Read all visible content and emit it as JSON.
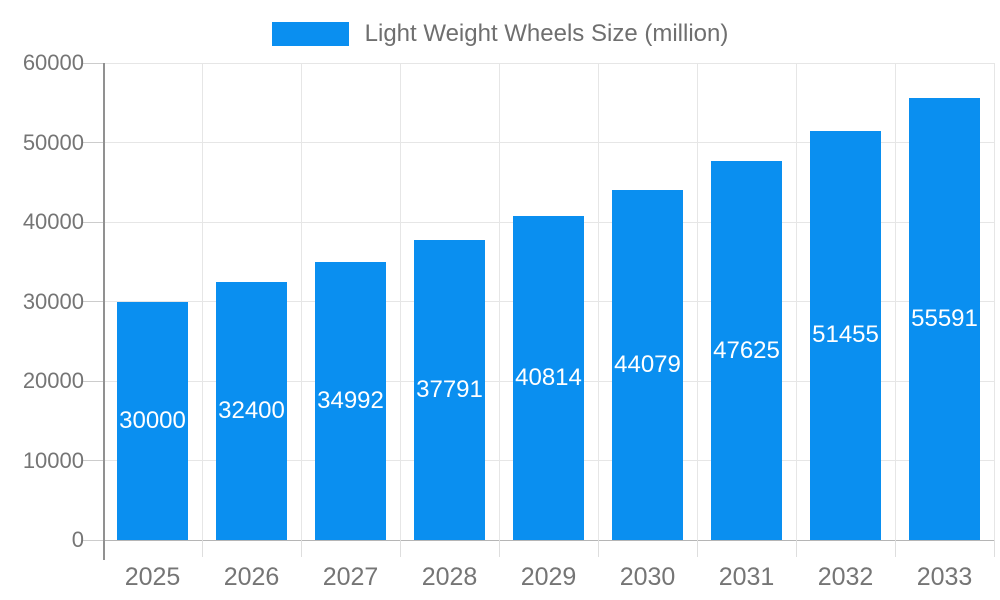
{
  "colors": {
    "bar": "#0a8ff0",
    "grid": "#e6e6e6",
    "zero_line": "#b5b5b5",
    "y_axis": "#919191",
    "axis_text": "#757575",
    "bar_label_text": "#ffffff",
    "legend_text": "#6f6f6f"
  },
  "chart_data": {
    "type": "bar",
    "legend": "Light Weight Wheels Size (million)",
    "legend_position": "top",
    "categories": [
      "2025",
      "2026",
      "2027",
      "2028",
      "2029",
      "2030",
      "2031",
      "2032",
      "2033"
    ],
    "series": [
      {
        "name": "Light Weight Wheels Size (million)",
        "values": [
          30000,
          32400,
          34992,
          37791,
          40814,
          44079,
          47625,
          51455,
          55591
        ]
      }
    ],
    "bar_value_labels": [
      "30000",
      "32400",
      "34992",
      "37791",
      "40814",
      "44079",
      "47625",
      "51455",
      "55591"
    ],
    "xlabel": "",
    "ylabel": "",
    "ylim": [
      0,
      60000
    ],
    "ytick_interval": 10000,
    "ytick_labels": [
      "0",
      "10000",
      "20000",
      "30000",
      "40000",
      "50000",
      "60000"
    ],
    "grid": "on",
    "vertical_gridlines": "on"
  }
}
